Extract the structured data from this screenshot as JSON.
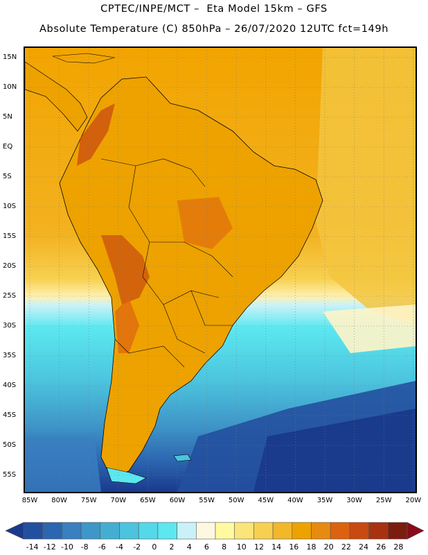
{
  "header": {
    "title_line1": "CPTEC/INPE/MCT –  Eta Model 15km – GFS",
    "title_line2": "Absolute Temperature (C) 850hPa – 26/07/2020 12UTC fct=149h"
  },
  "map": {
    "lat_labels": [
      "15N",
      "10N",
      "5N",
      "EQ",
      "5S",
      "10S",
      "15S",
      "20S",
      "25S",
      "30S",
      "35S",
      "40S",
      "45S",
      "50S",
      "55S"
    ],
    "lon_labels": [
      "85W",
      "80W",
      "75W",
      "70W",
      "65W",
      "60W",
      "55W",
      "50W",
      "45W",
      "40W",
      "35W",
      "30W",
      "25W",
      "20W"
    ],
    "lat_range": [
      15,
      -55
    ],
    "lon_range": [
      -85,
      -20
    ],
    "grid": "dotted",
    "ocean_fill_colors": {
      "warm": "#f4a300",
      "mid": "#f5c330",
      "pale": "#fff0b0",
      "cold": "#4fe0f0"
    }
  },
  "colorbar": {
    "labels": [
      "-14",
      "-12",
      "-10",
      "-8",
      "-6",
      "-4",
      "-2",
      "0",
      "2",
      "4",
      "6",
      "8",
      "10",
      "12",
      "14",
      "16",
      "18",
      "20",
      "22",
      "24",
      "26",
      "28"
    ],
    "colors": [
      "#1a3a8c",
      "#23509e",
      "#2c66b0",
      "#3a7fc0",
      "#3f96c8",
      "#44aed2",
      "#4cc4de",
      "#55d8ea",
      "#5ce8f0",
      "#c9f2f8",
      "#fff8e0",
      "#fffaa0",
      "#fbe47a",
      "#f7d050",
      "#f2b82a",
      "#eda200",
      "#e88a10",
      "#dd6210",
      "#c84a10",
      "#a83210",
      "#7c1c10",
      "#8a0a1a"
    ]
  }
}
